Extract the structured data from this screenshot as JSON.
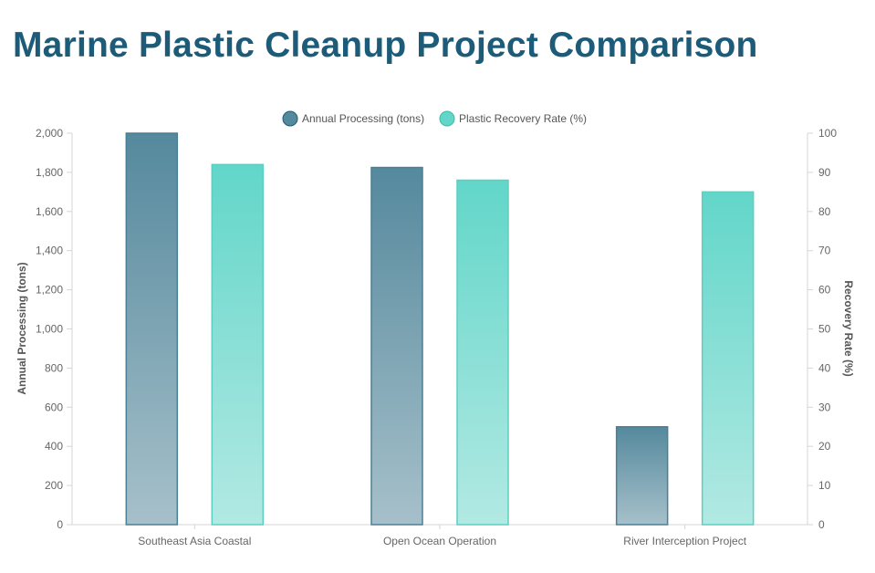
{
  "page": {
    "title": "Marine Plastic Cleanup Project Comparison"
  },
  "colors": {
    "title": "#1d5c78",
    "processing_stroke": "#4b7f96",
    "processing_top": "#55899d",
    "processing_bottom": "#a6c0ca",
    "recovery_stroke": "#5ccfc2",
    "recovery_top": "#62d6c9",
    "recovery_bottom": "#b2e9e3",
    "grid": "#e6e6e6",
    "axis": "#d6d6d6",
    "tick_text": "#666666"
  },
  "chart_data": {
    "type": "bar",
    "title": "Marine Plastic Cleanup Project Comparison",
    "categories": [
      "Southeast Asia Coastal",
      "Open Ocean Operation",
      "River Interception Project"
    ],
    "series": [
      {
        "name": "Annual Processing (tons)",
        "axis": "left",
        "values": [
          2000,
          1825,
          500
        ]
      },
      {
        "name": "Plastic Recovery Rate (%)",
        "axis": "right",
        "values": [
          92,
          88,
          85
        ]
      }
    ],
    "y_left": {
      "label": "Annual Processing (tons)",
      "min": 0,
      "max": 2000,
      "ticks": [
        "0",
        "200",
        "400",
        "600",
        "800",
        "1,000",
        "1,200",
        "1,400",
        "1,600",
        "1,800",
        "2,000"
      ]
    },
    "y_right": {
      "label": "Recovery Rate (%)",
      "min": 0,
      "max": 100,
      "ticks": [
        "0",
        "10",
        "20",
        "30",
        "40",
        "50",
        "60",
        "70",
        "80",
        "90",
        "100"
      ]
    },
    "legend_position": "top-center",
    "grid": false
  }
}
